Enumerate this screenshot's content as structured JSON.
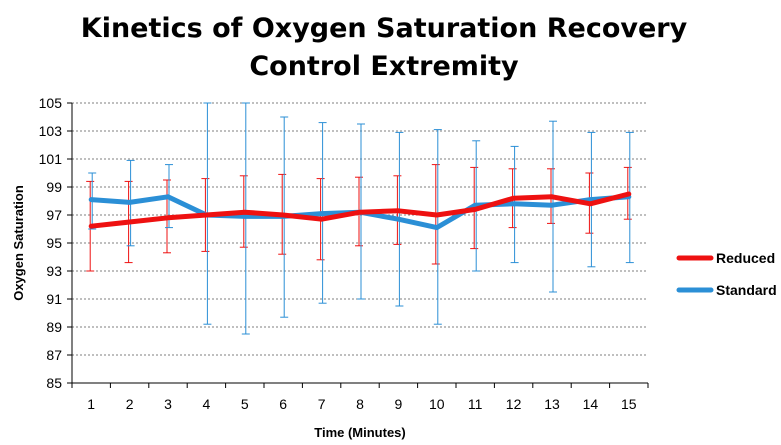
{
  "chart_data": {
    "type": "line",
    "title": [
      "Kinetics of Oxygen Saturation Recovery",
      "Control Extremity"
    ],
    "xlabel": "Time (Minutes)",
    "ylabel": "Oxygen Saturation",
    "ylim": [
      85,
      105
    ],
    "yticks": [
      85,
      87,
      89,
      91,
      93,
      95,
      97,
      99,
      101,
      103,
      105
    ],
    "categories": [
      "1",
      "2",
      "3",
      "4",
      "5",
      "6",
      "7",
      "8",
      "9",
      "10",
      "11",
      "12",
      "13",
      "14",
      "15"
    ],
    "grid": "horizontal dashed",
    "legend_position": "right",
    "series": [
      {
        "name": "Reduced",
        "color": "#ee1111",
        "values": [
          96.2,
          96.5,
          96.8,
          97.0,
          97.2,
          97.0,
          96.7,
          97.2,
          97.3,
          97.0,
          97.4,
          98.2,
          98.3,
          97.8,
          98.5
        ],
        "error_low": [
          93.0,
          93.6,
          94.3,
          94.4,
          94.7,
          94.2,
          93.8,
          94.8,
          94.9,
          93.5,
          94.6,
          96.1,
          96.4,
          95.7,
          96.7
        ],
        "error_high": [
          99.4,
          99.4,
          99.5,
          99.6,
          99.8,
          99.9,
          99.6,
          99.7,
          99.8,
          100.6,
          100.4,
          100.3,
          100.3,
          100.0,
          100.4
        ]
      },
      {
        "name": "Standard",
        "color": "#2b8fd6",
        "values": [
          98.1,
          97.9,
          98.3,
          97.0,
          96.9,
          96.9,
          97.1,
          97.2,
          96.7,
          96.1,
          97.7,
          97.8,
          97.7,
          98.1,
          98.3
        ],
        "error_low": [
          96.0,
          94.8,
          96.1,
          89.2,
          88.5,
          89.7,
          90.7,
          91.0,
          90.5,
          89.2,
          93.0,
          93.6,
          91.5,
          93.3,
          93.6
        ],
        "error_high": [
          100.0,
          100.9,
          100.6,
          105.0,
          105.0,
          104.0,
          103.6,
          103.5,
          102.9,
          103.1,
          102.3,
          101.9,
          103.7,
          102.9,
          102.9
        ]
      }
    ]
  }
}
